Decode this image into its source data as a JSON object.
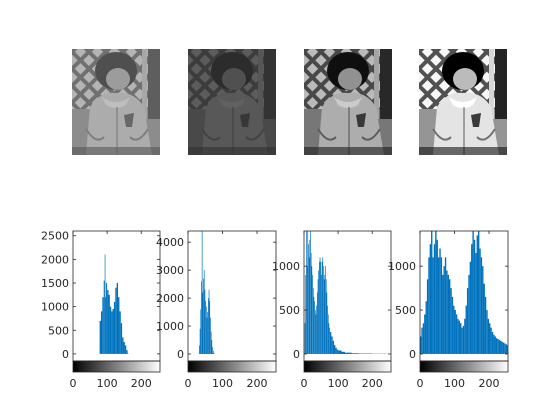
{
  "figure": {
    "background": "#ffffff",
    "bar_color": "#0072bd",
    "axis_color": "#262626"
  },
  "images": [
    {
      "name": "photo-1-original",
      "tone": "mid-gray low contrast"
    },
    {
      "name": "photo-2-dark",
      "tone": "dark low contrast"
    },
    {
      "name": "photo-3-stretched",
      "tone": "contrast stretched"
    },
    {
      "name": "photo-4-equalized",
      "tone": "histogram equalized"
    }
  ],
  "chart_data": [
    {
      "type": "bar",
      "xlim": [
        0,
        255
      ],
      "ylim": [
        -150,
        2600
      ],
      "xticks": [
        "0",
        "100",
        "200"
      ],
      "xtick_values": [
        0,
        100,
        200
      ],
      "yticks": [
        "0",
        "500",
        "1000",
        "1500",
        "2000",
        "2500"
      ],
      "ytick_values": [
        0,
        500,
        1000,
        1500,
        2000,
        2500
      ],
      "colorbar": true,
      "peaks": [
        {
          "x": 78,
          "y": 700
        },
        {
          "x": 82,
          "y": 900
        },
        {
          "x": 86,
          "y": 1200
        },
        {
          "x": 90,
          "y": 1550
        },
        {
          "x": 93,
          "y": 2100
        },
        {
          "x": 95,
          "y": 1200
        },
        {
          "x": 97,
          "y": 1500
        },
        {
          "x": 100,
          "y": 1350
        },
        {
          "x": 104,
          "y": 1250
        },
        {
          "x": 108,
          "y": 1000
        },
        {
          "x": 112,
          "y": 900
        },
        {
          "x": 116,
          "y": 950
        },
        {
          "x": 120,
          "y": 1100
        },
        {
          "x": 124,
          "y": 1400
        },
        {
          "x": 128,
          "y": 1500
        },
        {
          "x": 132,
          "y": 1200
        },
        {
          "x": 136,
          "y": 900
        },
        {
          "x": 140,
          "y": 650
        },
        {
          "x": 144,
          "y": 350
        },
        {
          "x": 148,
          "y": 250
        },
        {
          "x": 152,
          "y": 180
        },
        {
          "x": 156,
          "y": 80
        },
        {
          "x": 160,
          "y": 20
        }
      ]
    },
    {
      "type": "bar",
      "xlim": [
        0,
        255
      ],
      "ylim": [
        -250,
        4400
      ],
      "xticks": [
        "0",
        "100",
        "200"
      ],
      "xtick_values": [
        0,
        100,
        200
      ],
      "yticks": [
        "0",
        "1000",
        "2000",
        "3000",
        "4000"
      ],
      "ytick_values": [
        0,
        1000,
        2000,
        3000,
        4000
      ],
      "colorbar": true,
      "peaks": [
        {
          "x": 32,
          "y": 300
        },
        {
          "x": 34,
          "y": 900
        },
        {
          "x": 36,
          "y": 1600
        },
        {
          "x": 38,
          "y": 2600
        },
        {
          "x": 40,
          "y": 4400
        },
        {
          "x": 42,
          "y": 2200
        },
        {
          "x": 44,
          "y": 2700
        },
        {
          "x": 46,
          "y": 3000
        },
        {
          "x": 48,
          "y": 2300
        },
        {
          "x": 50,
          "y": 1900
        },
        {
          "x": 52,
          "y": 1700
        },
        {
          "x": 54,
          "y": 1300
        },
        {
          "x": 56,
          "y": 1500
        },
        {
          "x": 58,
          "y": 2000
        },
        {
          "x": 60,
          "y": 2300
        },
        {
          "x": 62,
          "y": 1900
        },
        {
          "x": 64,
          "y": 1300
        },
        {
          "x": 66,
          "y": 800
        },
        {
          "x": 68,
          "y": 500
        },
        {
          "x": 70,
          "y": 250
        },
        {
          "x": 72,
          "y": 120
        },
        {
          "x": 74,
          "y": 40
        }
      ]
    },
    {
      "type": "bar",
      "xlim": [
        0,
        255
      ],
      "ylim": [
        -80,
        1400
      ],
      "xticks": [
        "0",
        "100",
        "200"
      ],
      "xtick_values": [
        0,
        100,
        200
      ],
      "yticks": [
        "0",
        "500",
        "1000"
      ],
      "ytick_values": [
        0,
        500,
        1000
      ],
      "colorbar": true,
      "peaks": [
        {
          "x": 2,
          "y": 350
        },
        {
          "x": 4,
          "y": 900
        },
        {
          "x": 6,
          "y": 1400
        },
        {
          "x": 8,
          "y": 1000
        },
        {
          "x": 10,
          "y": 1400
        },
        {
          "x": 12,
          "y": 1250
        },
        {
          "x": 14,
          "y": 1100
        },
        {
          "x": 16,
          "y": 1300
        },
        {
          "x": 18,
          "y": 1400
        },
        {
          "x": 20,
          "y": 1150
        },
        {
          "x": 22,
          "y": 1000
        },
        {
          "x": 24,
          "y": 900
        },
        {
          "x": 26,
          "y": 750
        },
        {
          "x": 28,
          "y": 650
        },
        {
          "x": 30,
          "y": 600
        },
        {
          "x": 32,
          "y": 500
        },
        {
          "x": 34,
          "y": 450
        },
        {
          "x": 36,
          "y": 550
        },
        {
          "x": 38,
          "y": 700
        },
        {
          "x": 40,
          "y": 850
        },
        {
          "x": 42,
          "y": 950
        },
        {
          "x": 44,
          "y": 1050
        },
        {
          "x": 46,
          "y": 1100
        },
        {
          "x": 48,
          "y": 1050
        },
        {
          "x": 50,
          "y": 900
        },
        {
          "x": 52,
          "y": 1050
        },
        {
          "x": 54,
          "y": 1100
        },
        {
          "x": 56,
          "y": 1000
        },
        {
          "x": 58,
          "y": 850
        },
        {
          "x": 60,
          "y": 900
        },
        {
          "x": 62,
          "y": 1000
        },
        {
          "x": 64,
          "y": 850
        },
        {
          "x": 66,
          "y": 700
        },
        {
          "x": 68,
          "y": 550
        },
        {
          "x": 70,
          "y": 450
        },
        {
          "x": 72,
          "y": 350
        },
        {
          "x": 74,
          "y": 300
        },
        {
          "x": 76,
          "y": 250
        },
        {
          "x": 80,
          "y": 200
        },
        {
          "x": 84,
          "y": 150
        },
        {
          "x": 88,
          "y": 100
        },
        {
          "x": 92,
          "y": 70
        },
        {
          "x": 96,
          "y": 50
        },
        {
          "x": 100,
          "y": 40
        },
        {
          "x": 110,
          "y": 25
        },
        {
          "x": 120,
          "y": 15
        },
        {
          "x": 140,
          "y": 8
        },
        {
          "x": 160,
          "y": 5
        },
        {
          "x": 200,
          "y": 3
        },
        {
          "x": 240,
          "y": 2
        }
      ]
    },
    {
      "type": "bar",
      "xlim": [
        0,
        255
      ],
      "ylim": [
        -80,
        1400
      ],
      "xticks": [
        "0",
        "100",
        "200"
      ],
      "xtick_values": [
        0,
        100,
        200
      ],
      "yticks": [
        "0",
        "500",
        "1000"
      ],
      "ytick_values": [
        0,
        500,
        1000
      ],
      "colorbar": true,
      "peaks": [
        {
          "x": 0,
          "y": 200
        },
        {
          "x": 4,
          "y": 300
        },
        {
          "x": 8,
          "y": 350
        },
        {
          "x": 12,
          "y": 450
        },
        {
          "x": 16,
          "y": 600
        },
        {
          "x": 20,
          "y": 850
        },
        {
          "x": 24,
          "y": 1100
        },
        {
          "x": 28,
          "y": 1250
        },
        {
          "x": 32,
          "y": 1400
        },
        {
          "x": 36,
          "y": 1100
        },
        {
          "x": 40,
          "y": 1250
        },
        {
          "x": 44,
          "y": 1400
        },
        {
          "x": 48,
          "y": 1300
        },
        {
          "x": 52,
          "y": 1100
        },
        {
          "x": 56,
          "y": 1200
        },
        {
          "x": 60,
          "y": 1100
        },
        {
          "x": 64,
          "y": 900
        },
        {
          "x": 68,
          "y": 1000
        },
        {
          "x": 72,
          "y": 1100
        },
        {
          "x": 76,
          "y": 950
        },
        {
          "x": 80,
          "y": 900
        },
        {
          "x": 84,
          "y": 850
        },
        {
          "x": 88,
          "y": 750
        },
        {
          "x": 92,
          "y": 650
        },
        {
          "x": 96,
          "y": 550
        },
        {
          "x": 100,
          "y": 500
        },
        {
          "x": 104,
          "y": 450
        },
        {
          "x": 108,
          "y": 400
        },
        {
          "x": 112,
          "y": 380
        },
        {
          "x": 116,
          "y": 350
        },
        {
          "x": 120,
          "y": 300
        },
        {
          "x": 124,
          "y": 320
        },
        {
          "x": 128,
          "y": 400
        },
        {
          "x": 132,
          "y": 550
        },
        {
          "x": 136,
          "y": 750
        },
        {
          "x": 140,
          "y": 900
        },
        {
          "x": 144,
          "y": 1050
        },
        {
          "x": 148,
          "y": 1250
        },
        {
          "x": 152,
          "y": 1400
        },
        {
          "x": 156,
          "y": 1300
        },
        {
          "x": 160,
          "y": 1150
        },
        {
          "x": 164,
          "y": 1350
        },
        {
          "x": 168,
          "y": 1400
        },
        {
          "x": 172,
          "y": 1200
        },
        {
          "x": 176,
          "y": 1100
        },
        {
          "x": 180,
          "y": 1000
        },
        {
          "x": 184,
          "y": 800
        },
        {
          "x": 188,
          "y": 650
        },
        {
          "x": 192,
          "y": 500
        },
        {
          "x": 196,
          "y": 400
        },
        {
          "x": 200,
          "y": 350
        },
        {
          "x": 204,
          "y": 300
        },
        {
          "x": 208,
          "y": 250
        },
        {
          "x": 212,
          "y": 220
        },
        {
          "x": 216,
          "y": 200
        },
        {
          "x": 220,
          "y": 180
        },
        {
          "x": 224,
          "y": 170
        },
        {
          "x": 228,
          "y": 160
        },
        {
          "x": 232,
          "y": 150
        },
        {
          "x": 236,
          "y": 140
        },
        {
          "x": 240,
          "y": 130
        },
        {
          "x": 244,
          "y": 120
        },
        {
          "x": 248,
          "y": 110
        },
        {
          "x": 252,
          "y": 100
        }
      ]
    }
  ]
}
